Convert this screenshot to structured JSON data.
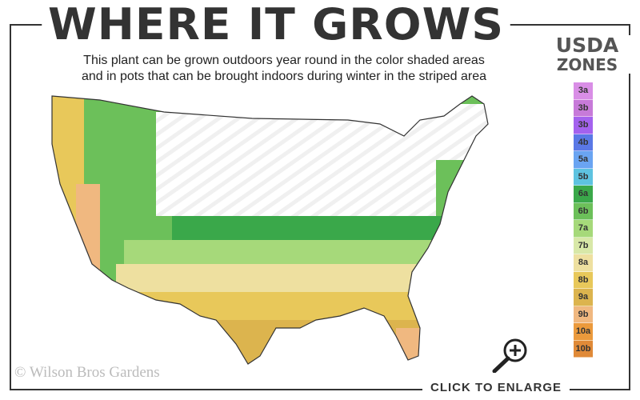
{
  "header": {
    "title": "WHERE IT GROWS",
    "subtitle_line1": "This plant can be grown outdoors year round in the color shaded areas",
    "subtitle_line2": "and in pots that can be brought indoors during winter in the striped area"
  },
  "legend": {
    "title_line1": "USDA",
    "title_line2": "ZONES",
    "zones": [
      {
        "label": "3a",
        "color": "#d98ee6"
      },
      {
        "label": "3b",
        "color": "#c77ad9"
      },
      {
        "label": "3b",
        "color": "#a462ee"
      },
      {
        "label": "4b",
        "color": "#5a78e6"
      },
      {
        "label": "5a",
        "color": "#6aa4f2"
      },
      {
        "label": "5b",
        "color": "#5ec3e0"
      },
      {
        "label": "6a",
        "color": "#3aa84a"
      },
      {
        "label": "6b",
        "color": "#6cc05a"
      },
      {
        "label": "7a",
        "color": "#a6d97a"
      },
      {
        "label": "7b",
        "color": "#d8e8a8"
      },
      {
        "label": "8a",
        "color": "#eee0a0"
      },
      {
        "label": "8b",
        "color": "#e8c85a"
      },
      {
        "label": "9a",
        "color": "#dcb44e"
      },
      {
        "label": "9b",
        "color": "#f0b880"
      },
      {
        "label": "10a",
        "color": "#eb9a3c"
      },
      {
        "label": "10b",
        "color": "#e08a38"
      }
    ]
  },
  "footer": {
    "copyright": "© Wilson Bros Gardens",
    "enlarge": "CLICK TO ENLARGE",
    "icon": "zoom-in-icon"
  }
}
